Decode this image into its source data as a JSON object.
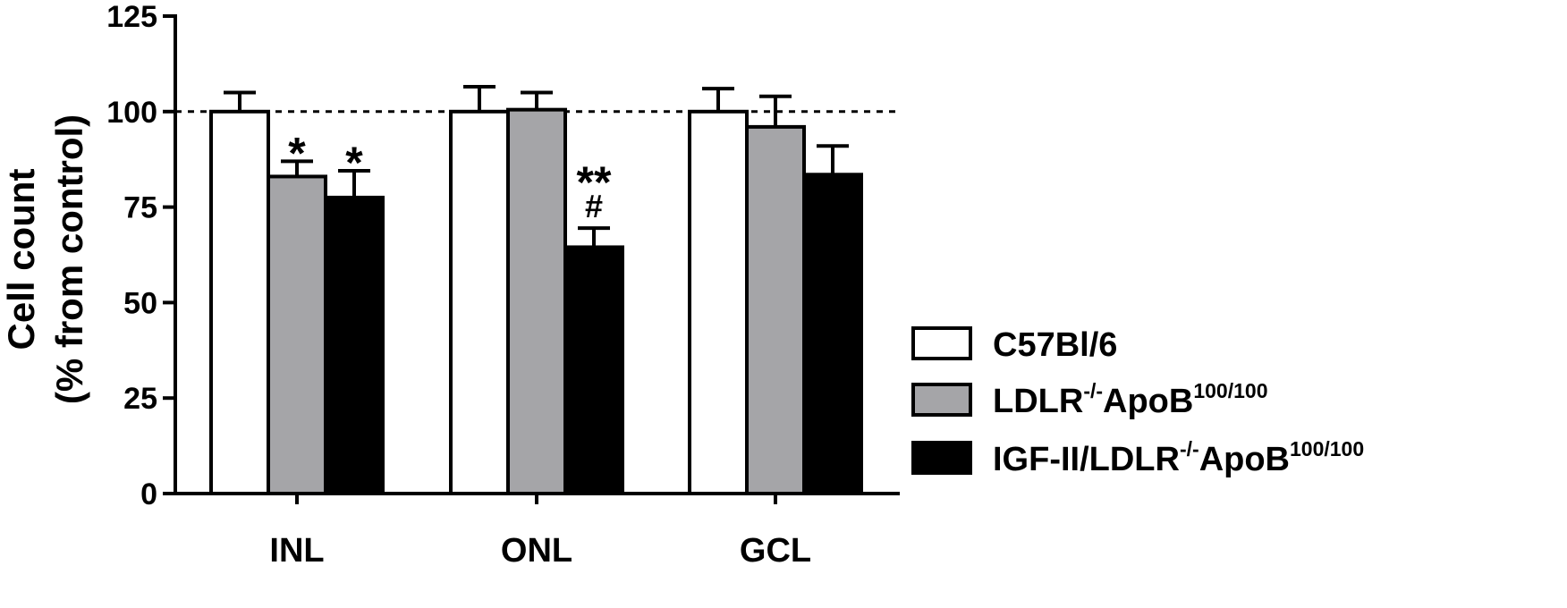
{
  "chart_data": {
    "type": "bar",
    "categories": [
      "INL",
      "ONL",
      "GCL"
    ],
    "series": [
      {
        "name": "C57Bl/6",
        "color": "#ffffff",
        "values": [
          100,
          100,
          100
        ],
        "errors": [
          5,
          6.5,
          6
        ]
      },
      {
        "name": "LDLR-/-ApoB100/100",
        "color": "#a5a5a8",
        "values": [
          83,
          100.5,
          96
        ],
        "errors": [
          4,
          4.5,
          8
        ]
      },
      {
        "name": "IGF-II/LDLR-/-ApoB100/100",
        "color": "#000000",
        "values": [
          77.5,
          64.5,
          83.5
        ],
        "errors": [
          7,
          5,
          7.5
        ]
      }
    ],
    "legend": [
      {
        "main": "C57Bl/6",
        "sup1": "",
        "mid": "",
        "sup2": "",
        "color": "#ffffff"
      },
      {
        "main": "LDLR",
        "sup1": "-/-",
        "mid": "ApoB",
        "sup2": "100/100",
        "color": "#a5a5a8"
      },
      {
        "main": "IGF-II/LDLR",
        "sup1": "-/-",
        "mid": "ApoB",
        "sup2": "100/100",
        "color": "#000000"
      }
    ],
    "ylabel_line1": "Cell count",
    "ylabel_line2": "(% from control)",
    "ylim": [
      0,
      125
    ],
    "yticks": [
      0,
      25,
      50,
      75,
      100,
      125
    ],
    "reference_line": 100,
    "annotations": [
      {
        "category": 0,
        "series": 1,
        "text": "*",
        "sub": ""
      },
      {
        "category": 0,
        "series": 2,
        "text": "*",
        "sub": ""
      },
      {
        "category": 1,
        "series": 2,
        "text": "**",
        "sub": "#"
      }
    ],
    "grid": false,
    "legend_position": "right"
  }
}
